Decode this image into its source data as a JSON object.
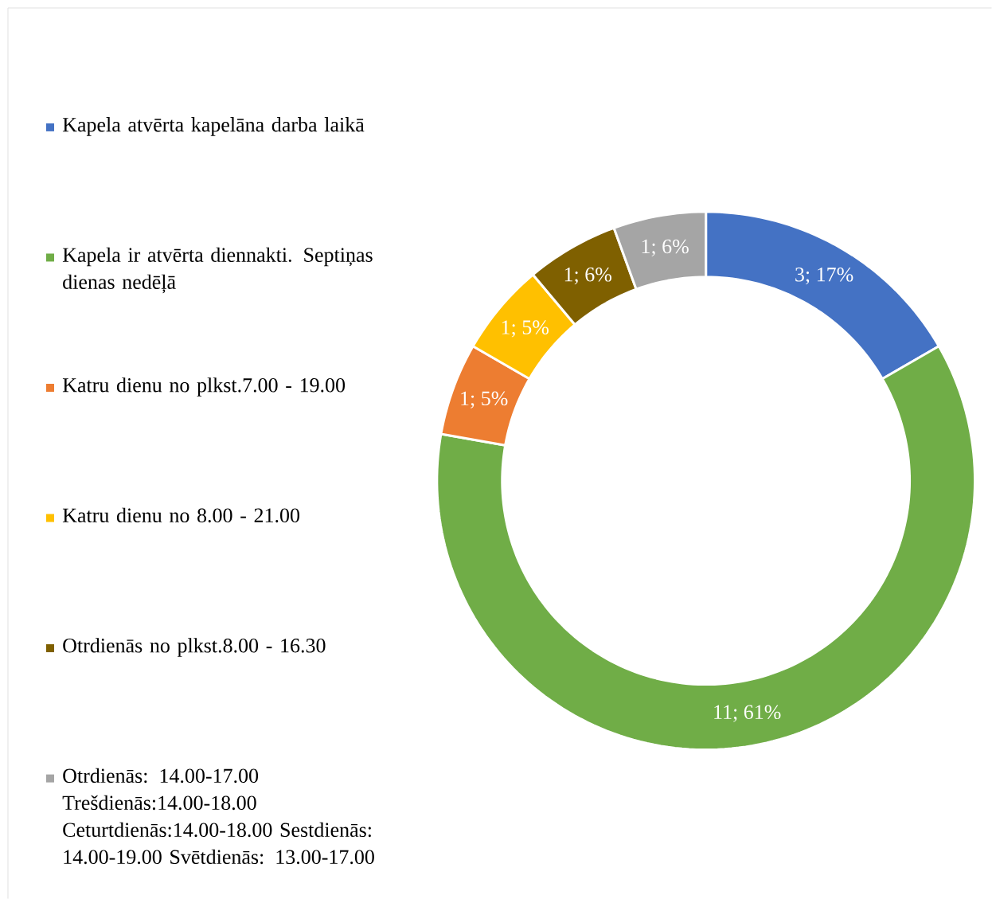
{
  "chart_data": {
    "type": "donut",
    "legend": "left",
    "categories": [
      "Kapela atvērta kapelāna darba laikā",
      "Kapela ir atvērta diennakti. Septiņas dienas nedēļā",
      "Katru dienu no plkst.7.00 - 19.00",
      "Katru dienu no 8.00 - 21.00",
      "Otrdienās no plkst.8.00 - 16.30",
      "Otrdienās: 14.00-17.00 Trešdienās:14.00-18.00 Ceturtdienās:14.00-18.00 Sestdienās: 14.00-19.00 Svētdienās: 13.00-17.00"
    ],
    "values": [
      3,
      11,
      1,
      1,
      1,
      1
    ],
    "colors": [
      "#4472c4",
      "#70ad47",
      "#ed7d31",
      "#ffc000",
      "#7f6000",
      "#a5a5a5"
    ],
    "value_labels": [
      "3; 17%",
      "11; 61%",
      "1; 5%",
      "1; 5%",
      "1; 6%",
      "1; 6%"
    ]
  }
}
